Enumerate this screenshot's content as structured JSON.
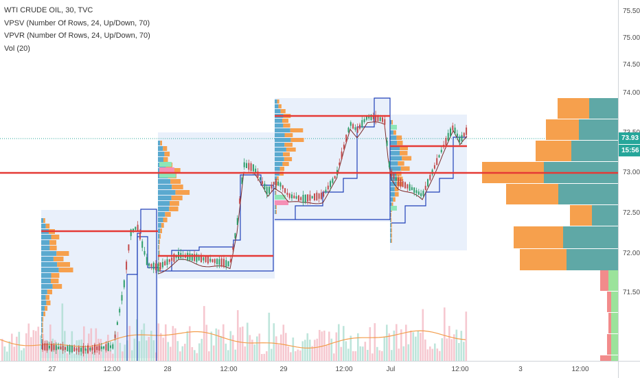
{
  "legend": {
    "symbol": "WTI CRUDE OIL, 30, TVC",
    "vpsv": "VPSV (Number Of Rows, 24, Up/Down, 70)",
    "vpvr": "VPVR (Number Of Rows, 24, Up/Down, 70)",
    "vol": "Vol (20)"
  },
  "price_axis": {
    "ticks": [
      "75.50",
      "75.00",
      "74.50",
      "74.00",
      "73.50",
      "73.00",
      "72.50",
      "72.00",
      "71.50"
    ],
    "last_price": "73.93",
    "countdown": "15:56"
  },
  "time_axis": {
    "ticks": [
      "27",
      "12:00",
      "28",
      "12:00",
      "29",
      "12:00",
      "Jul",
      "12:00",
      "3",
      "12:00"
    ]
  },
  "colors": {
    "up": "#26a69a",
    "down": "#ef5350",
    "poc": "#e53935",
    "value_area_box": "#e9f0fb",
    "vpvr_up": "#5fa8a6",
    "vpvr_down": "#f6a04d",
    "profile_blue": "#1f3fb8",
    "sma": "#f39c4a"
  }
}
